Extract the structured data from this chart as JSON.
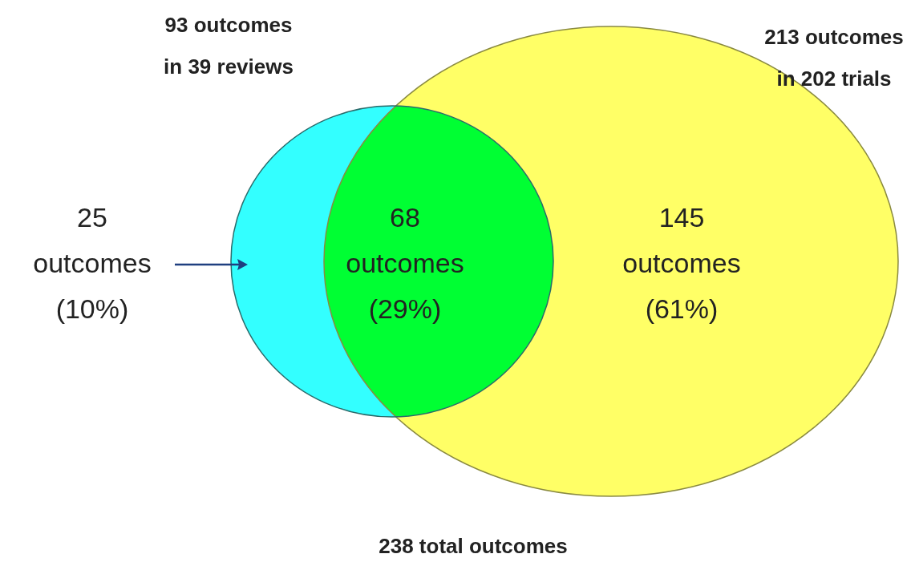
{
  "chart_data": {
    "type": "other",
    "values": [
      25,
      68,
      145
    ],
    "categories": [
      "outcomes (10%)",
      "outcomes (29%)",
      "outcomes (61%)"
    ],
    "colors": [
      "#33ffff",
      "#00ff33",
      "#ffff66"
    ],
    "data_labels": true,
    "annotations": [
      "93 outcomes\nin 39 reviews",
      "213 outcomes\nin 202 trials",
      "238 total outcomes"
    ]
  }
}
